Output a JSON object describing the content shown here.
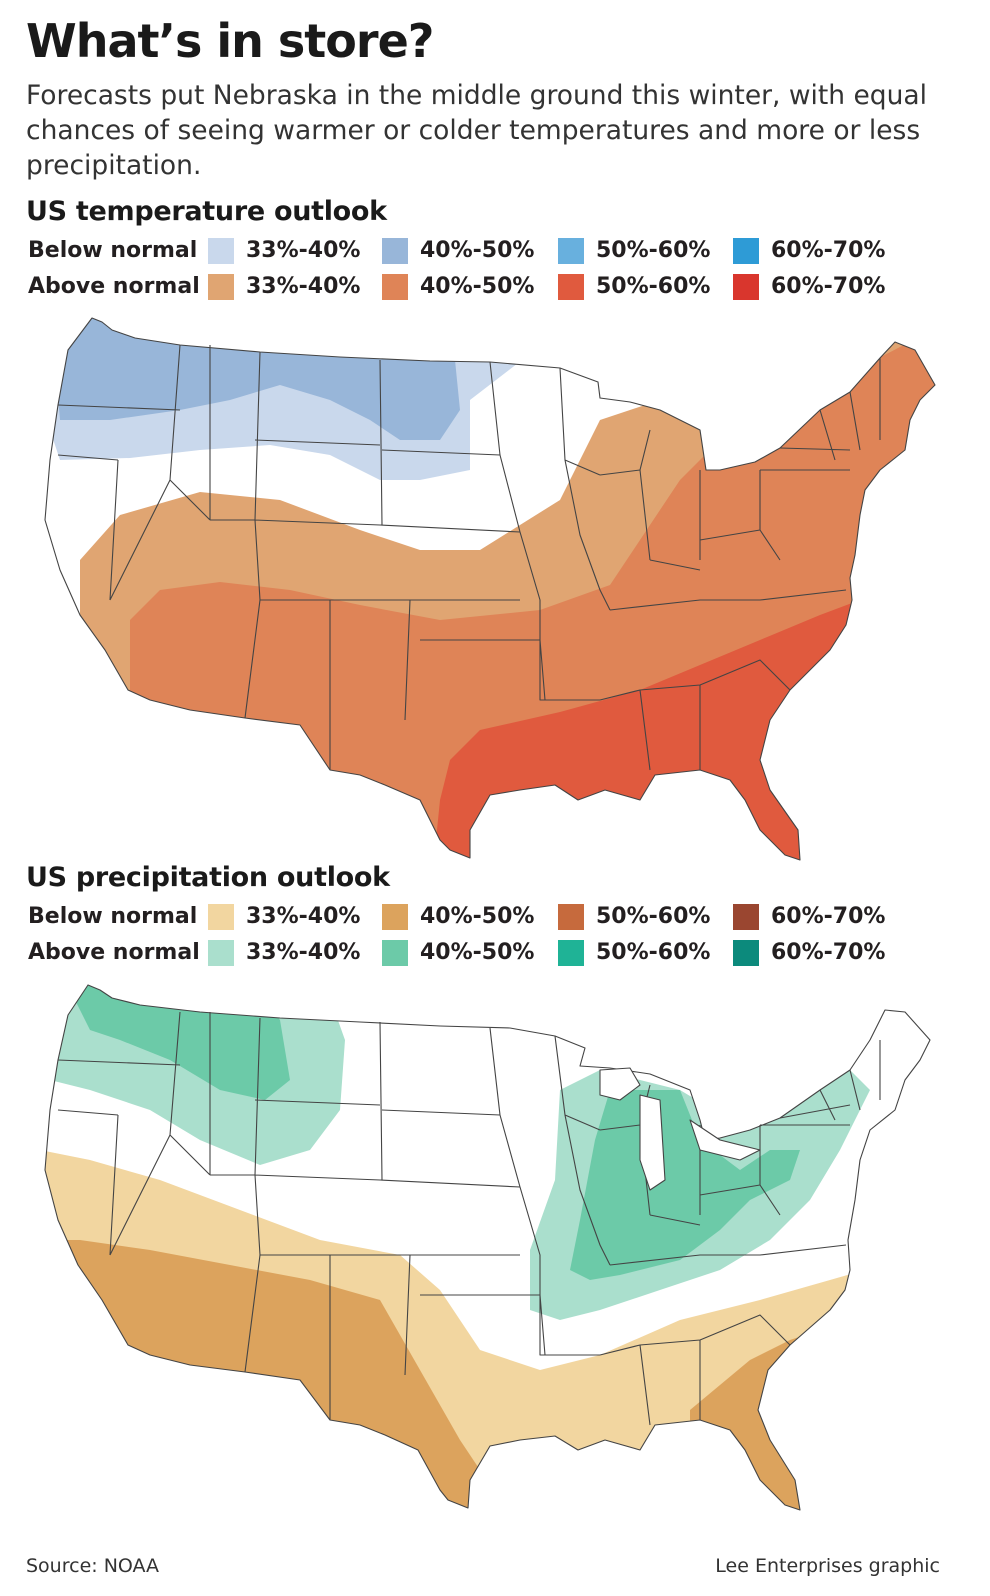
{
  "title": "What’s in store?",
  "subtitle": "Forecasts put Nebraska in the middle ground this winter, with equal chances of seeing warmer or colder temperatures and more or less precipitation.",
  "temperature": {
    "section_title": "US temperature outlook",
    "legend": {
      "below_label": "Below normal",
      "above_label": "Above normal",
      "below": [
        {
          "label": "33%-40%",
          "color": "#c9d8ec"
        },
        {
          "label": "40%-50%",
          "color": "#98b6d9"
        },
        {
          "label": "50%-60%",
          "color": "#68b0de"
        },
        {
          "label": "60%-70%",
          "color": "#2e9bd6"
        }
      ],
      "above": [
        {
          "label": "33%-40%",
          "color": "#e0a572"
        },
        {
          "label": "40%-50%",
          "color": "#df8457"
        },
        {
          "label": "50%-60%",
          "color": "#e05a3e"
        },
        {
          "label": "60%-70%",
          "color": "#d9362d"
        }
      ]
    }
  },
  "precipitation": {
    "section_title": "US precipitation outlook",
    "legend": {
      "below_label": "Below normal",
      "above_label": "Above normal",
      "below": [
        {
          "label": "33%-40%",
          "color": "#f2d6a0"
        },
        {
          "label": "40%-50%",
          "color": "#dca35d"
        },
        {
          "label": "50%-60%",
          "color": "#c66a3d"
        },
        {
          "label": "60%-70%",
          "color": "#9a4630"
        }
      ],
      "above": [
        {
          "label": "33%-40%",
          "color": "#aadfcd"
        },
        {
          "label": "40%-50%",
          "color": "#6ccaa8"
        },
        {
          "label": "50%-60%",
          "color": "#1fb396"
        },
        {
          "label": "60%-70%",
          "color": "#0c8a7c"
        }
      ]
    }
  },
  "footer": {
    "source": "Source: NOAA",
    "credit": "Lee Enterprises graphic"
  }
}
